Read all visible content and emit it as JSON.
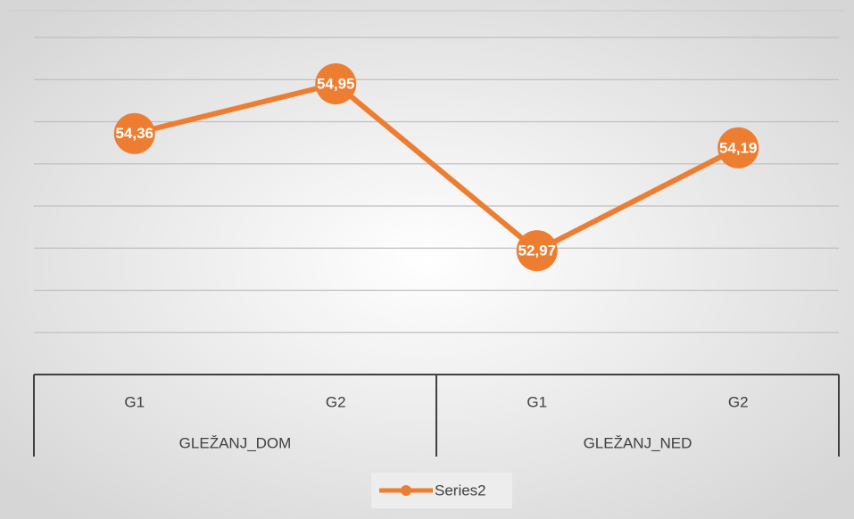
{
  "chart_data": {
    "type": "line",
    "categories": [
      "G1",
      "G2",
      "G1",
      "G2"
    ],
    "groups": [
      "GLEŽANJ_DOM",
      "GLEŽANJ_NED"
    ],
    "series": [
      {
        "name": "Series2",
        "color": "#ed7d31",
        "values": [
          54.36,
          54.95,
          52.97,
          54.19
        ],
        "value_labels": [
          "54,36",
          "54,95",
          "52,97",
          "54,19"
        ]
      }
    ],
    "ylim": [
      51.5,
      55.5
    ],
    "yticks": [
      52,
      52.5,
      53,
      53.5,
      54,
      54.5,
      55,
      55.5
    ],
    "grid": true,
    "legend": "bottom"
  }
}
